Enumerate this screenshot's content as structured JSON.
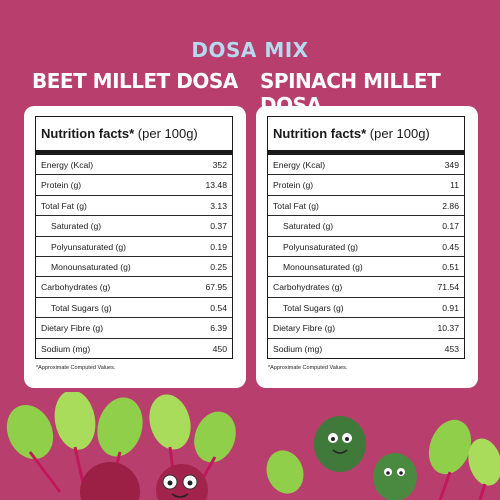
{
  "header": {
    "mix_label": "DOSA MIX",
    "left_product": "BEET MILLET DOSA",
    "right_product": "SPINACH MILLET DOSA"
  },
  "left_panel": {
    "title_bold": "Nutrition facts*",
    "title_rest": " (per 100g)",
    "rows": [
      {
        "label": "Energy (Kcal)",
        "value": "352"
      },
      {
        "label": "Protein (g)",
        "value": "13.48"
      },
      {
        "label": "Total Fat (g)",
        "value": "3.13"
      },
      {
        "label": "Saturated (g)",
        "value": "0.37"
      },
      {
        "label": "Polyunsaturated (g)",
        "value": "0.19"
      },
      {
        "label": "Monounsaturated (g)",
        "value": "0.25"
      },
      {
        "label": "Carbohydrates (g)",
        "value": "67.95"
      },
      {
        "label": "Total Sugars (g)",
        "value": "0.54"
      },
      {
        "label": "Dietary Fibre (g)",
        "value": "6.39"
      },
      {
        "label": "Sodium (mg)",
        "value": "450"
      }
    ],
    "footnote": "*Approximate Computed Values."
  },
  "right_panel": {
    "title_bold": "Nutrition facts*",
    "title_rest": " (per 100g)",
    "rows": [
      {
        "label": "Energy (Kcal)",
        "value": "349"
      },
      {
        "label": "Protein (g)",
        "value": "11"
      },
      {
        "label": "Total Fat (g)",
        "value": "2.86"
      },
      {
        "label": "Saturated (g)",
        "value": "0.17"
      },
      {
        "label": "Polyunsaturated (g)",
        "value": "0.45"
      },
      {
        "label": "Monounsaturated (g)",
        "value": "0.51"
      },
      {
        "label": "Carbohydrates (g)",
        "value": "71.54"
      },
      {
        "label": "Total Sugars (g)",
        "value": "0.91"
      },
      {
        "label": "Dietary Fibre (g)",
        "value": "10.37"
      },
      {
        "label": "Sodium (mg)",
        "value": "453"
      }
    ],
    "footnote": "*Approximate Computed Values."
  },
  "colors": {
    "background": "#b83e6e",
    "mix_label": "#b6d9ee",
    "beet": "#9c1f45",
    "spinach": "#3f7a3a",
    "leaf": "#8fcf4a"
  },
  "illustration": {
    "left_icon": "beet-characters-icon",
    "right_icon": "spinach-characters-icon"
  }
}
